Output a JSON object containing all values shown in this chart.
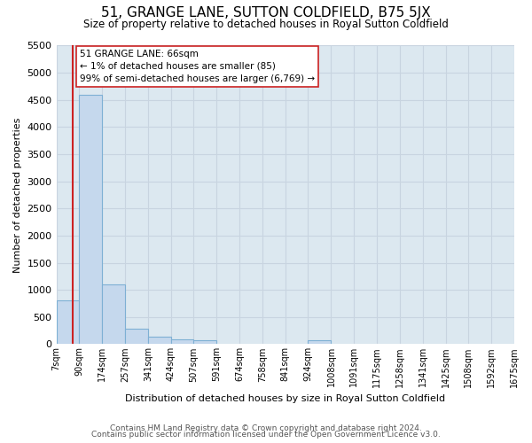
{
  "title": "51, GRANGE LANE, SUTTON COLDFIELD, B75 5JX",
  "subtitle": "Size of property relative to detached houses in Royal Sutton Coldfield",
  "xlabel": "Distribution of detached houses by size in Royal Sutton Coldfield",
  "ylabel": "Number of detached properties",
  "footer1": "Contains HM Land Registry data © Crown copyright and database right 2024.",
  "footer2": "Contains public sector information licensed under the Open Government Licence v3.0.",
  "annotation_title": "51 GRANGE LANE: 66sqm",
  "annotation_line1": "← 1% of detached houses are smaller (85)",
  "annotation_line2": "99% of semi-detached houses are larger (6,769) →",
  "property_sqm": 66,
  "bar_color": "#c5d8ed",
  "bar_edge_color": "#7eb0d4",
  "vline_color": "#cc2222",
  "annotation_box_facecolor": "#ffffff",
  "annotation_box_edgecolor": "#cc2222",
  "grid_color": "#c8d4e0",
  "bg_color": "#dce8f0",
  "bins": [
    7,
    90,
    174,
    257,
    341,
    424,
    507,
    591,
    674,
    758,
    841,
    924,
    1008,
    1091,
    1175,
    1258,
    1341,
    1425,
    1508,
    1592,
    1675
  ],
  "bin_labels": [
    "7sqm",
    "90sqm",
    "174sqm",
    "257sqm",
    "341sqm",
    "424sqm",
    "507sqm",
    "591sqm",
    "674sqm",
    "758sqm",
    "841sqm",
    "924sqm",
    "1008sqm",
    "1091sqm",
    "1175sqm",
    "1258sqm",
    "1341sqm",
    "1425sqm",
    "1508sqm",
    "1592sqm",
    "1675sqm"
  ],
  "bar_heights": [
    800,
    4600,
    1100,
    290,
    130,
    80,
    70,
    0,
    0,
    0,
    0,
    70,
    0,
    0,
    0,
    0,
    0,
    0,
    0,
    0
  ],
  "ylim": [
    0,
    5500
  ],
  "yticks": [
    0,
    500,
    1000,
    1500,
    2000,
    2500,
    3000,
    3500,
    4000,
    4500,
    5000,
    5500
  ]
}
